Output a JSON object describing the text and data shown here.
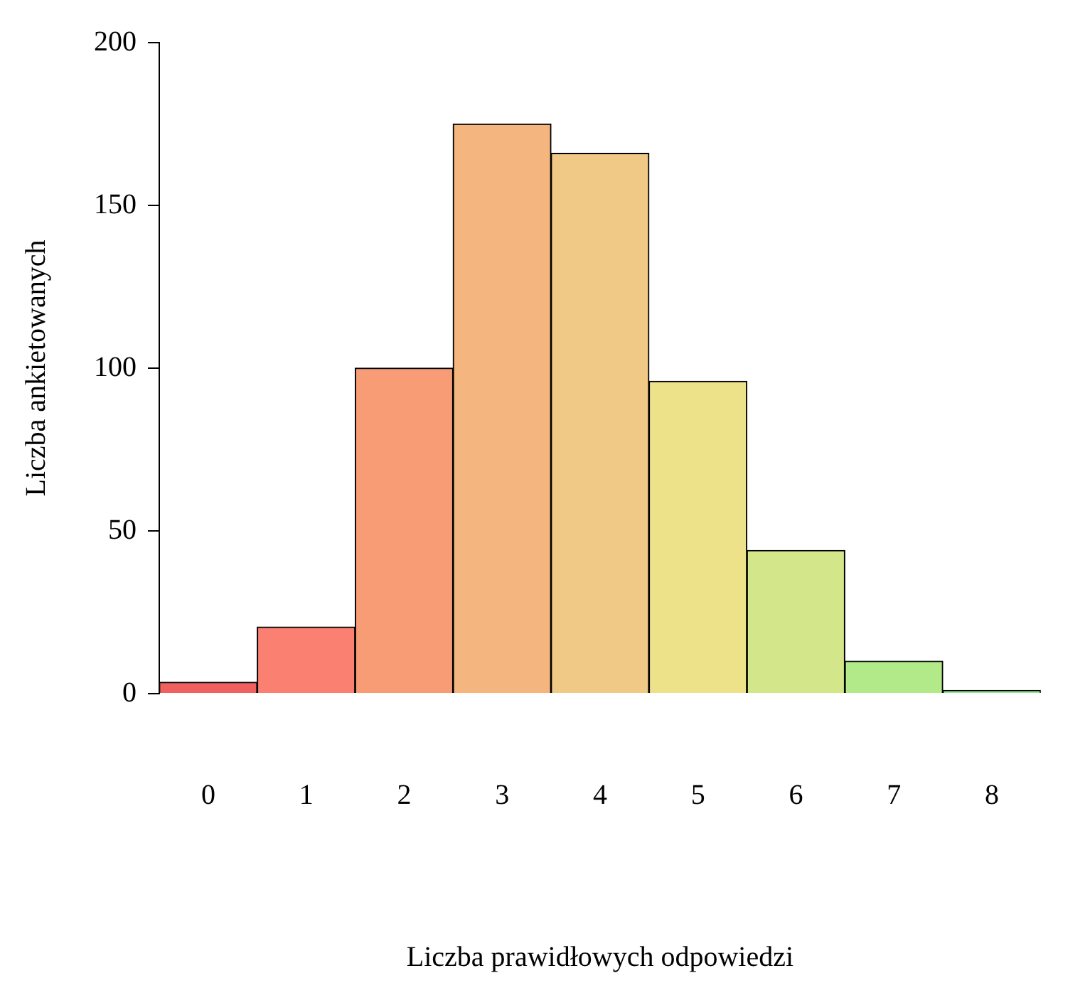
{
  "chart_data": {
    "type": "bar",
    "xlabel": "Liczba prawidłowych odpowiedzi",
    "ylabel": "Liczba ankietowanych",
    "categories": [
      "0",
      "1",
      "2",
      "3",
      "4",
      "5",
      "6",
      "7",
      "8"
    ],
    "values": [
      3.5,
      20.5,
      100,
      175,
      166,
      96,
      44,
      10,
      1
    ],
    "colors": [
      "#f0605e",
      "#fa8072",
      "#f79c74",
      "#f4b57e",
      "#f0c986",
      "#ede28a",
      "#d4e68a",
      "#b2ea8a",
      "#90e890"
    ],
    "ylim": [
      0,
      200
    ],
    "yticks": [
      0,
      50,
      100,
      150,
      200
    ],
    "grid": false,
    "legend": false
  }
}
